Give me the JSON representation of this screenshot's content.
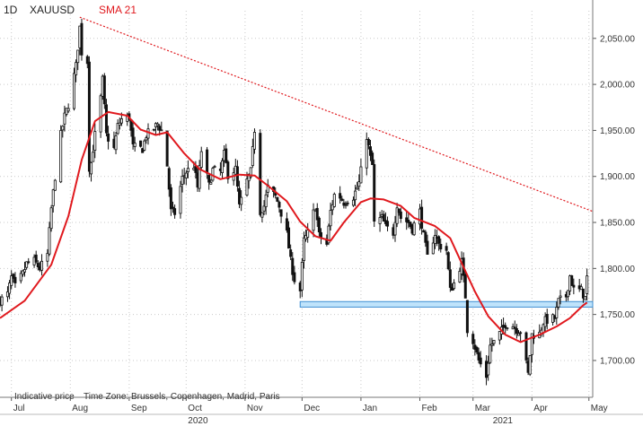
{
  "header": {
    "interval": "1D",
    "symbol": "XAUUSD",
    "indicator": "SMA 21"
  },
  "footer": {
    "price_type": "Indicative price",
    "timezone": "Time Zone: Brussels, Copenhagen, Madrid, Paris"
  },
  "colors": {
    "candle": "#111111",
    "sma": "#e0191e",
    "trendline": "#e0191e",
    "support_fill": "#bfe3fb",
    "support_stroke": "#3f8fd2",
    "grid": "#c9c9c9"
  },
  "chart_data": {
    "type": "candlestick",
    "title": "",
    "symbol": "XAUUSD",
    "interval": "1D",
    "ylim": [
      1660,
      2080
    ],
    "y_ticks": [
      "1,700.00",
      "1,750.00",
      "1,800.00",
      "1,850.00",
      "1,900.00",
      "1,950.00",
      "2,000.00",
      "2,050.00"
    ],
    "x_month_labels": [
      "Jul",
      "Aug",
      "Sep",
      "Oct",
      "Nov",
      "Dec",
      "Jan",
      "Feb",
      "Mar",
      "Apr",
      "May"
    ],
    "x_year_labels": [
      "2020",
      "2021"
    ],
    "x_start": "2020-06-25",
    "x_end": "2021-05-03",
    "close_series": [
      [
        "2020-06-25",
        1765
      ],
      [
        "2020-06-29",
        1772
      ],
      [
        "2020-07-01",
        1790
      ],
      [
        "2020-07-03",
        1780
      ],
      [
        "2020-07-07",
        1794
      ],
      [
        "2020-07-09",
        1805
      ],
      [
        "2020-07-13",
        1808
      ],
      [
        "2020-07-16",
        1800
      ],
      [
        "2020-07-20",
        1815
      ],
      [
        "2020-07-22",
        1865
      ],
      [
        "2020-07-24",
        1900
      ],
      [
        "2020-07-27",
        1945
      ],
      [
        "2020-07-29",
        1965
      ],
      [
        "2020-07-31",
        1978
      ],
      [
        "2020-08-04",
        2020
      ],
      [
        "2020-08-06",
        2062
      ],
      [
        "2020-08-07",
        2035
      ],
      [
        "2020-08-10",
        2025
      ],
      [
        "2020-08-11",
        1910
      ],
      [
        "2020-08-12",
        1915
      ],
      [
        "2020-08-14",
        1945
      ],
      [
        "2020-08-17",
        1985
      ],
      [
        "2020-08-18",
        2005
      ],
      [
        "2020-08-20",
        1945
      ],
      [
        "2020-08-24",
        1930
      ],
      [
        "2020-08-26",
        1955
      ],
      [
        "2020-08-28",
        1962
      ],
      [
        "2020-09-01",
        1965
      ],
      [
        "2020-09-03",
        1932
      ],
      [
        "2020-09-08",
        1930
      ],
      [
        "2020-09-10",
        1945
      ],
      [
        "2020-09-14",
        1952
      ],
      [
        "2020-09-16",
        1957
      ],
      [
        "2020-09-18",
        1950
      ],
      [
        "2020-09-21",
        1912
      ],
      [
        "2020-09-23",
        1862
      ],
      [
        "2020-09-25",
        1860
      ],
      [
        "2020-09-29",
        1898
      ],
      [
        "2020-10-01",
        1905
      ],
      [
        "2020-10-05",
        1912
      ],
      [
        "2020-10-07",
        1888
      ],
      [
        "2020-10-09",
        1928
      ],
      [
        "2020-10-13",
        1890
      ],
      [
        "2020-10-15",
        1907
      ],
      [
        "2020-10-19",
        1905
      ],
      [
        "2020-10-21",
        1924
      ],
      [
        "2020-10-23",
        1902
      ],
      [
        "2020-10-27",
        1908
      ],
      [
        "2020-10-29",
        1867
      ],
      [
        "2020-11-02",
        1895
      ],
      [
        "2020-11-04",
        1905
      ],
      [
        "2020-11-06",
        1951
      ],
      [
        "2020-11-09",
        1862
      ],
      [
        "2020-11-11",
        1868
      ],
      [
        "2020-11-13",
        1888
      ],
      [
        "2020-11-17",
        1878
      ],
      [
        "2020-11-19",
        1868
      ],
      [
        "2020-11-23",
        1838
      ],
      [
        "2020-11-25",
        1808
      ],
      [
        "2020-11-27",
        1788
      ],
      [
        "2020-11-30",
        1776
      ],
      [
        "2020-12-02",
        1830
      ],
      [
        "2020-12-04",
        1838
      ],
      [
        "2020-12-08",
        1868
      ],
      [
        "2020-12-10",
        1836
      ],
      [
        "2020-12-14",
        1826
      ],
      [
        "2020-12-16",
        1862
      ],
      [
        "2020-12-18",
        1880
      ],
      [
        "2020-12-21",
        1878
      ],
      [
        "2020-12-23",
        1872
      ],
      [
        "2020-12-28",
        1878
      ],
      [
        "2020-12-31",
        1893
      ],
      [
        "2021-01-04",
        1944
      ],
      [
        "2021-01-06",
        1920
      ],
      [
        "2021-01-07",
        1912
      ],
      [
        "2021-01-08",
        1849
      ],
      [
        "2021-01-12",
        1855
      ],
      [
        "2021-01-14",
        1845
      ],
      [
        "2021-01-18",
        1839
      ],
      [
        "2021-01-20",
        1870
      ],
      [
        "2021-01-22",
        1855
      ],
      [
        "2021-01-26",
        1850
      ],
      [
        "2021-01-28",
        1843
      ],
      [
        "2021-02-01",
        1862
      ],
      [
        "2021-02-03",
        1835
      ],
      [
        "2021-02-05",
        1812
      ],
      [
        "2021-02-09",
        1838
      ],
      [
        "2021-02-11",
        1826
      ],
      [
        "2021-02-15",
        1820
      ],
      [
        "2021-02-17",
        1776
      ],
      [
        "2021-02-19",
        1784
      ],
      [
        "2021-02-23",
        1807
      ],
      [
        "2021-02-25",
        1770
      ],
      [
        "2021-02-26",
        1734
      ],
      [
        "2021-03-01",
        1722
      ],
      [
        "2021-03-04",
        1700
      ],
      [
        "2021-03-08",
        1683
      ],
      [
        "2021-03-10",
        1716
      ],
      [
        "2021-03-12",
        1720
      ],
      [
        "2021-03-16",
        1732
      ],
      [
        "2021-03-18",
        1740
      ],
      [
        "2021-03-22",
        1738
      ],
      [
        "2021-03-24",
        1734
      ],
      [
        "2021-03-26",
        1732
      ],
      [
        "2021-03-30",
        1685
      ],
      [
        "2021-04-01",
        1728
      ],
      [
        "2021-04-05",
        1729
      ],
      [
        "2021-04-07",
        1742
      ],
      [
        "2021-04-09",
        1744
      ],
      [
        "2021-04-13",
        1746
      ],
      [
        "2021-04-15",
        1764
      ],
      [
        "2021-04-19",
        1770
      ],
      [
        "2021-04-21",
        1792
      ],
      [
        "2021-04-23",
        1777
      ],
      [
        "2021-04-27",
        1776
      ],
      [
        "2021-04-29",
        1768
      ],
      [
        "2021-04-30",
        1790
      ]
    ],
    "sma21": [
      [
        "2020-06-25",
        1746
      ],
      [
        "2020-07-08",
        1765
      ],
      [
        "2020-07-22",
        1804
      ],
      [
        "2020-07-31",
        1857
      ],
      [
        "2020-08-07",
        1918
      ],
      [
        "2020-08-14",
        1960
      ],
      [
        "2020-08-21",
        1970
      ],
      [
        "2020-08-31",
        1966
      ],
      [
        "2020-09-07",
        1951
      ],
      [
        "2020-09-15",
        1945
      ],
      [
        "2020-09-21",
        1948
      ],
      [
        "2020-09-30",
        1925
      ],
      [
        "2020-10-08",
        1908
      ],
      [
        "2020-10-19",
        1897
      ],
      [
        "2020-10-29",
        1902
      ],
      [
        "2020-11-06",
        1901
      ],
      [
        "2020-11-13",
        1890
      ],
      [
        "2020-11-23",
        1873
      ],
      [
        "2020-11-30",
        1851
      ],
      [
        "2020-12-08",
        1835
      ],
      [
        "2020-12-16",
        1830
      ],
      [
        "2020-12-23",
        1850
      ],
      [
        "2021-01-01",
        1872
      ],
      [
        "2021-01-06",
        1876
      ],
      [
        "2021-01-13",
        1875
      ],
      [
        "2021-01-22",
        1868
      ],
      [
        "2021-01-29",
        1855
      ],
      [
        "2021-02-09",
        1846
      ],
      [
        "2021-02-17",
        1833
      ],
      [
        "2021-02-23",
        1806
      ],
      [
        "2021-03-02",
        1775
      ],
      [
        "2021-03-09",
        1748
      ],
      [
        "2021-03-18",
        1728
      ],
      [
        "2021-03-26",
        1720
      ],
      [
        "2021-04-05",
        1728
      ],
      [
        "2021-04-14",
        1737
      ],
      [
        "2021-04-21",
        1746
      ],
      [
        "2021-04-28",
        1760
      ],
      [
        "2021-04-30",
        1763
      ]
    ],
    "trendline": [
      [
        "2020-08-06",
        2073
      ],
      [
        "2021-05-03",
        1862
      ]
    ],
    "support_band": {
      "from": "2020-11-30",
      "to": "2021-05-03",
      "y_range": [
        1758,
        1764
      ]
    }
  }
}
